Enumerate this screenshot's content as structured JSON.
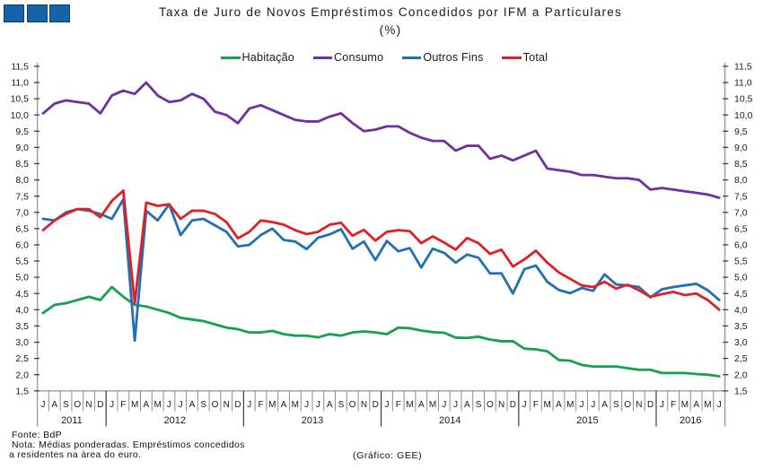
{
  "title": {
    "line1": "Taxa de Juro de Novos Empréstimos  Concedidos por IFM a Particulares",
    "line2": "(%)"
  },
  "logo": {
    "name": "gee-logo-squares",
    "count": 3,
    "color": "#1563a8"
  },
  "footer": {
    "fonte": "Fonte: BdP",
    "nota_line1": "Nota: Médias ponderadas. Empréstimos concedidos",
    "nota_line2": "a residentes na àrea do euro.",
    "grafico": "(Gráfico: GEE)"
  },
  "chart_data": {
    "type": "line",
    "title": "Taxa de Juro de Novos Empréstimos Concedidos por IFM a Particulares (%)",
    "ylim": [
      1.5,
      11.5
    ],
    "ytick_step": 0.5,
    "ytick_decimal": "comma",
    "y_axis_sides": [
      "left",
      "right"
    ],
    "grid": false,
    "legend_position": "top",
    "x_month_labels": [
      "J",
      "A",
      "S",
      "O",
      "N",
      "D",
      "J",
      "F",
      "M",
      "A",
      "M",
      "J",
      "J",
      "A",
      "S",
      "O",
      "N",
      "D",
      "J",
      "F",
      "M",
      "A",
      "M",
      "J",
      "J",
      "A",
      "S",
      "O",
      "N",
      "D",
      "J",
      "F",
      "M",
      "A",
      "M",
      "J",
      "J",
      "A",
      "S",
      "O",
      "N",
      "D",
      "J",
      "F",
      "M",
      "A",
      "M",
      "J",
      "J",
      "A",
      "S",
      "O",
      "N",
      "D",
      "J",
      "F",
      "M",
      "A",
      "M",
      "J"
    ],
    "years": [
      {
        "label": "2011",
        "months": 6
      },
      {
        "label": "2012",
        "months": 12
      },
      {
        "label": "2013",
        "months": 12
      },
      {
        "label": "2014",
        "months": 12
      },
      {
        "label": "2015",
        "months": 12
      },
      {
        "label": "2016",
        "months": 6
      }
    ],
    "series": [
      {
        "name": "Habitação",
        "color": "#16a04f",
        "values": [
          3.9,
          4.15,
          4.2,
          4.3,
          4.4,
          4.3,
          4.7,
          4.4,
          4.15,
          4.1,
          4.0,
          3.9,
          3.75,
          3.7,
          3.65,
          3.55,
          3.45,
          3.4,
          3.3,
          3.3,
          3.35,
          3.25,
          3.2,
          3.2,
          3.15,
          3.25,
          3.2,
          3.3,
          3.33,
          3.3,
          3.25,
          3.45,
          3.43,
          3.36,
          3.31,
          3.29,
          3.14,
          3.13,
          3.17,
          3.08,
          3.03,
          3.03,
          2.8,
          2.78,
          2.72,
          2.45,
          2.43,
          2.3,
          2.25,
          2.25,
          2.25,
          2.2,
          2.15,
          2.15,
          2.05,
          2.05,
          2.05,
          2.02,
          2.0,
          1.95
        ]
      },
      {
        "name": "Consumo",
        "color": "#7030a0",
        "values": [
          10.05,
          10.35,
          10.45,
          10.4,
          10.35,
          10.05,
          10.6,
          10.75,
          10.65,
          11.0,
          10.6,
          10.4,
          10.45,
          10.65,
          10.5,
          10.1,
          10.0,
          9.75,
          10.2,
          10.3,
          10.15,
          10.0,
          9.85,
          9.8,
          9.8,
          9.95,
          10.05,
          9.75,
          9.5,
          9.55,
          9.65,
          9.65,
          9.45,
          9.3,
          9.2,
          9.2,
          8.9,
          9.05,
          9.05,
          8.65,
          8.75,
          8.6,
          8.75,
          8.9,
          8.35,
          8.3,
          8.25,
          8.15,
          8.15,
          8.1,
          8.05,
          8.05,
          8.0,
          7.7,
          7.75,
          7.7,
          7.65,
          7.6,
          7.55,
          7.45
        ]
      },
      {
        "name": "Outros Fins",
        "color": "#2270b3",
        "values": [
          6.8,
          6.75,
          7.0,
          7.1,
          7.05,
          6.95,
          6.8,
          7.4,
          3.05,
          7.05,
          6.75,
          7.25,
          6.3,
          6.75,
          6.8,
          6.6,
          6.4,
          5.95,
          6.0,
          6.3,
          6.5,
          6.15,
          6.1,
          5.87,
          6.22,
          6.32,
          6.48,
          5.88,
          6.1,
          5.53,
          6.12,
          5.8,
          5.9,
          5.3,
          5.88,
          5.75,
          5.45,
          5.7,
          5.6,
          5.12,
          5.12,
          4.5,
          5.25,
          5.36,
          4.86,
          4.61,
          4.51,
          4.67,
          4.58,
          5.09,
          4.78,
          4.75,
          4.7,
          4.38,
          4.63,
          4.7,
          4.75,
          4.8,
          4.6,
          4.3
        ]
      },
      {
        "name": "Total",
        "color": "#dc2127",
        "values": [
          6.45,
          6.75,
          6.95,
          7.1,
          7.1,
          6.85,
          7.35,
          7.67,
          4.2,
          7.3,
          7.2,
          7.25,
          6.8,
          7.05,
          7.05,
          6.95,
          6.7,
          6.2,
          6.4,
          6.75,
          6.7,
          6.62,
          6.45,
          6.33,
          6.4,
          6.62,
          6.68,
          6.28,
          6.46,
          6.13,
          6.4,
          6.45,
          6.42,
          6.05,
          6.26,
          6.07,
          5.85,
          6.21,
          6.05,
          5.72,
          5.85,
          5.33,
          5.55,
          5.82,
          5.45,
          5.15,
          4.95,
          4.75,
          4.7,
          4.86,
          4.65,
          4.77,
          4.6,
          4.4,
          4.48,
          4.55,
          4.45,
          4.5,
          4.3,
          4.0
        ]
      }
    ]
  }
}
